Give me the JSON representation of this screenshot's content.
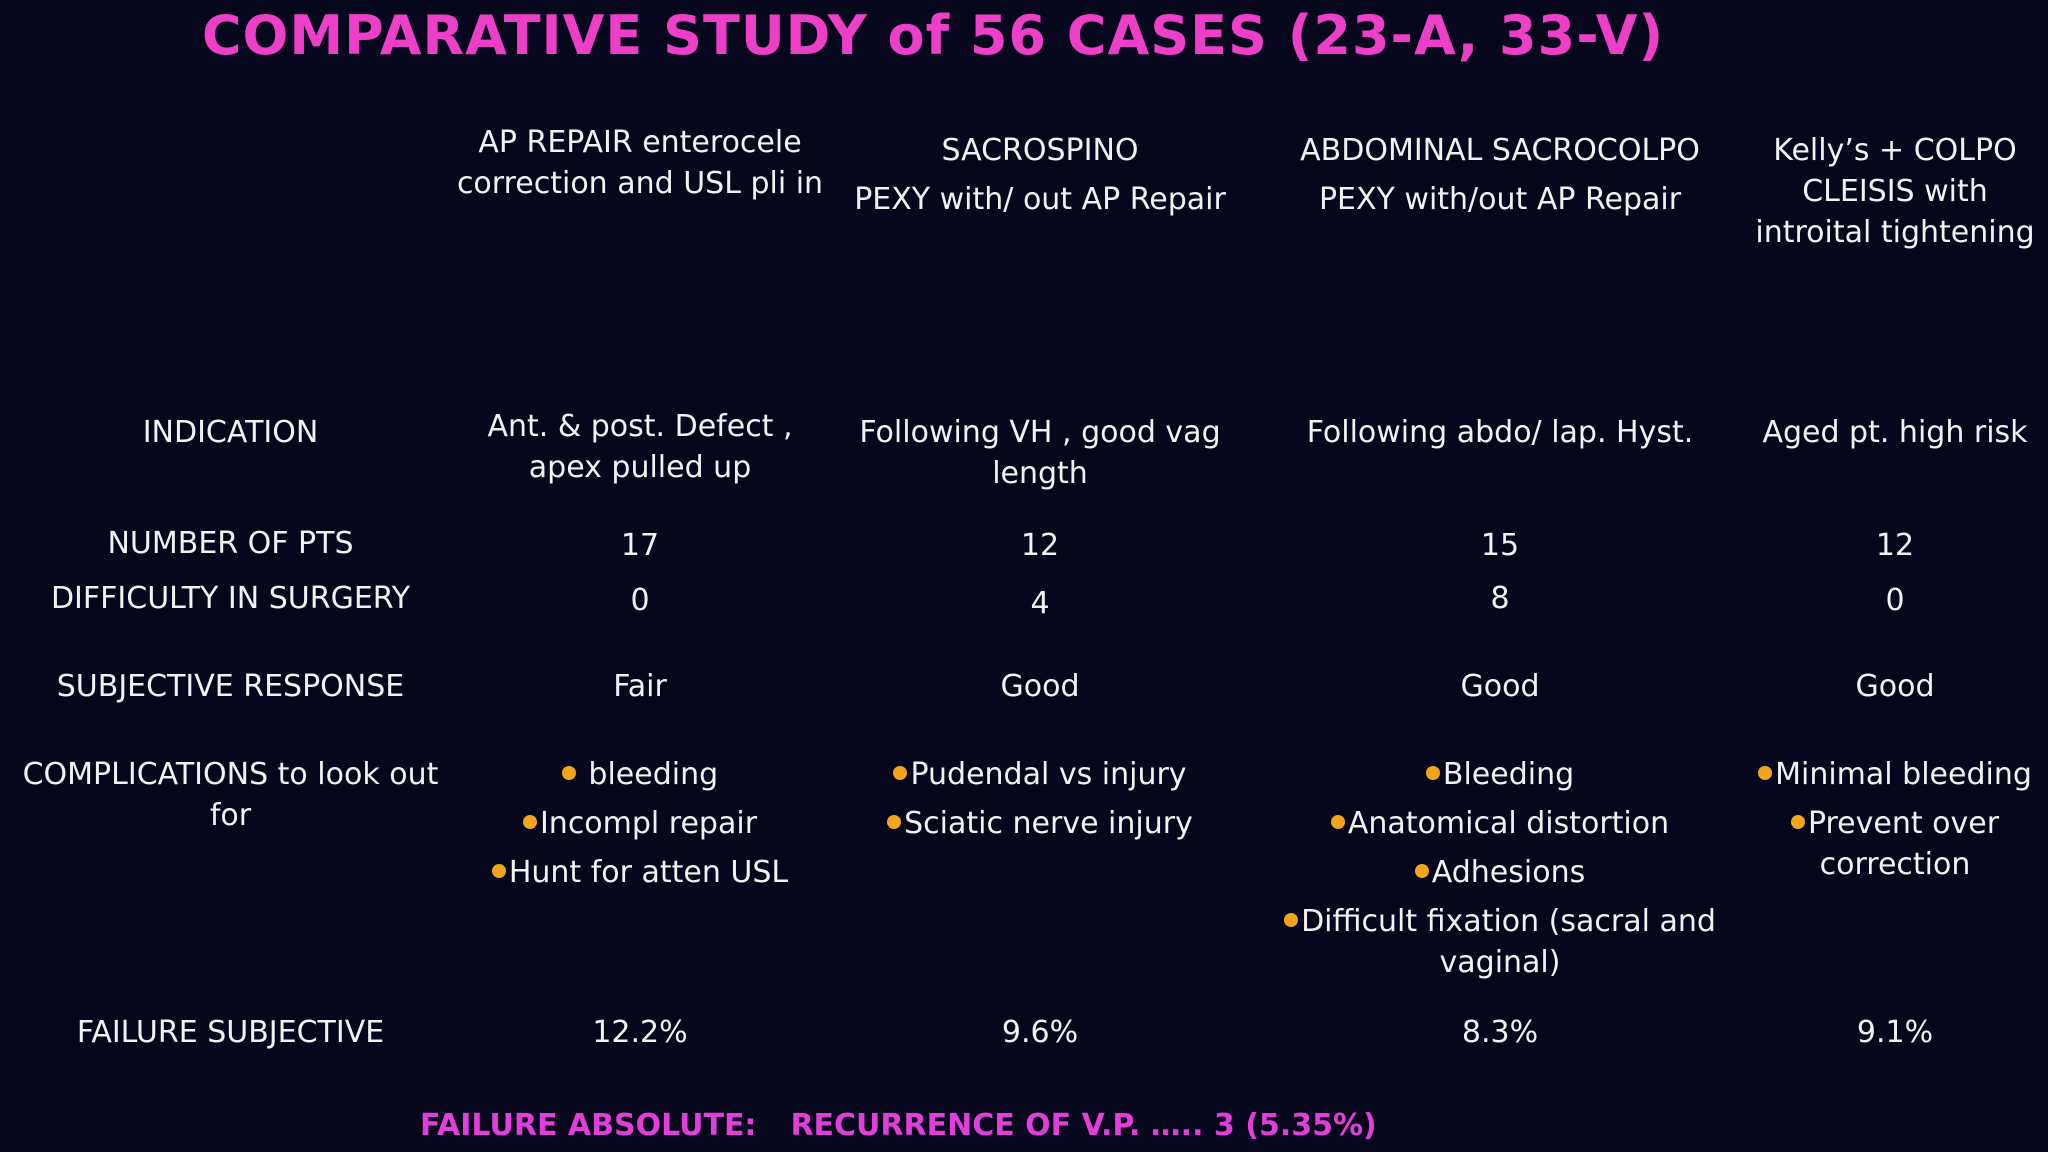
{
  "title": "COMPARATIVE STUDY of 56 CASES (23-A, 33-V)",
  "columns": [
    {
      "head_lines": [
        "AP REPAIR enterocele",
        "correction and USL pli in"
      ]
    },
    {
      "head_lines": [
        "SACROSPINO",
        "PEXY with/ out AP Repair"
      ]
    },
    {
      "head_lines": [
        "ABDOMINAL SACROCOLPO",
        "PEXY with/out AP Repair"
      ]
    },
    {
      "head_lines": [
        "Kelly’s + COLPO",
        "CLEISIS  with",
        "introital tightening"
      ]
    }
  ],
  "rows": {
    "indication": {
      "label": "INDICATION",
      "values": [
        [
          "Ant. & post. Defect ,",
          "apex pulled up"
        ],
        [
          "Following VH , good vag",
          "length"
        ],
        [
          "Following abdo/ lap. Hyst."
        ],
        [
          "Aged pt. high risk"
        ]
      ]
    },
    "number_of_pts": {
      "label": "NUMBER OF PTS",
      "values": [
        "17",
        "12",
        "15",
        "12"
      ]
    },
    "difficulty": {
      "label": "DIFFICULTY IN SURGERY",
      "values": [
        "0",
        "4",
        "8",
        "0"
      ]
    },
    "subjective_response": {
      "label": "SUBJECTIVE RESPONSE",
      "values": [
        "Fair",
        "Good",
        "Good",
        "Good"
      ]
    },
    "complications": {
      "label_lines": [
        "COMPLICATIONS to look out",
        "for"
      ],
      "values": [
        [
          " bleeding",
          "Incompl repair",
          "Hunt for atten USL"
        ],
        [
          "Pudendal vs injury",
          "Sciatic nerve injury"
        ],
        [
          "Bleeding",
          "Anatomical distortion",
          "Adhesions",
          "Difficult fixation (sacral and"
        ],
        [
          "Minimal bleeding",
          "Prevent over"
        ]
      ],
      "continuations": {
        "col3": "vaginal)",
        "col4": "correction"
      }
    },
    "failure_subjective": {
      "label": "FAILURE SUBJECTIVE",
      "values": [
        "12.2%",
        "9.6%",
        "8.3%",
        "9.1%"
      ]
    }
  },
  "footer": {
    "left": "FAILURE ABSOLUTE:",
    "right": "RECURRENCE OF V.P.  ….. 3 (5.35%)"
  },
  "colors": {
    "background": "#06071d",
    "title": "#ee3fc8",
    "text": "#f2f2f2",
    "bullet": "#f2a51a",
    "footer": "#e23ed9"
  }
}
